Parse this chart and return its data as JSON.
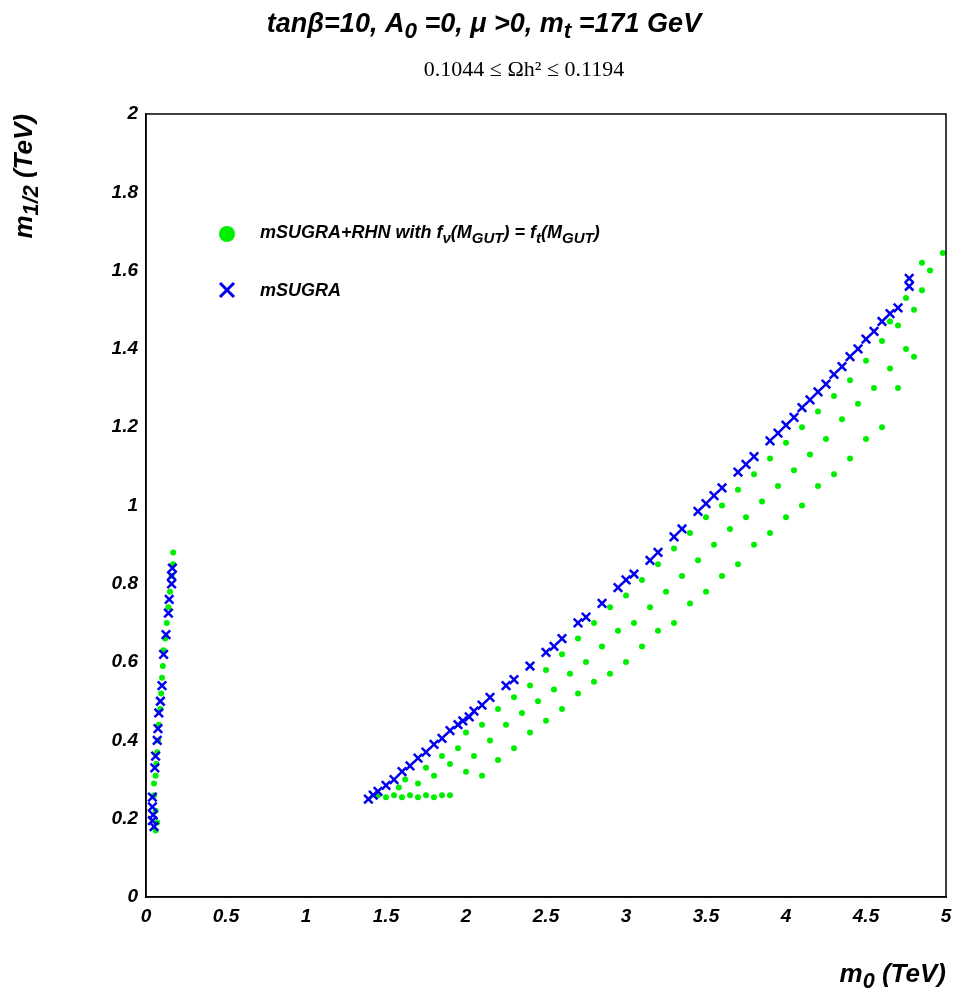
{
  "chart_data": {
    "type": "scatter",
    "title": "tanβ=10, A$_{0}$ =0, μ >0, m$_{t}$ =171 GeV",
    "subtitle": "0.1044 ≤ Ωh² ≤ 0.1194",
    "xlabel": "m$_{0}$ (TeV)",
    "ylabel": "m$_{1/2}$ (TeV)",
    "xlim": [
      0,
      5
    ],
    "xticks": [
      0,
      0.5,
      1,
      1.5,
      2,
      2.5,
      3,
      3.5,
      4,
      4.5,
      5
    ],
    "ylim": [
      0,
      2
    ],
    "yticks": [
      0,
      0.2,
      0.4,
      0.6,
      0.8,
      1,
      1.2,
      1.4,
      1.6,
      1.8,
      2
    ],
    "legend": "top left",
    "series": [
      {
        "name": "mSUGRA+RHN  with  f$_{ν}$(M$_{GUT}$) = f$_{t}$(M$_{GUT}$)",
        "color": "#00ee00",
        "marker": "circle",
        "x": [
          0.06,
          0.07,
          0.06,
          0.05,
          0.05,
          0.06,
          0.065,
          0.07,
          0.075,
          0.08,
          0.09,
          0.095,
          0.1,
          0.105,
          0.11,
          0.12,
          0.13,
          0.14,
          0.15,
          0.16,
          0.17,
          0.17,
          1.45,
          1.5,
          1.55,
          1.6,
          1.65,
          1.7,
          1.75,
          1.8,
          1.85,
          1.9,
          1.58,
          1.62,
          1.7,
          1.75,
          1.8,
          1.85,
          1.9,
          1.95,
          2.0,
          2.0,
          2.05,
          2.1,
          2.1,
          2.15,
          2.2,
          2.2,
          2.25,
          2.3,
          2.3,
          2.35,
          2.4,
          2.4,
          2.45,
          2.5,
          2.5,
          2.55,
          2.6,
          2.6,
          2.65,
          2.7,
          2.7,
          2.75,
          2.8,
          2.8,
          2.85,
          2.9,
          2.9,
          2.95,
          3.0,
          3.0,
          3.05,
          3.1,
          3.1,
          3.15,
          3.2,
          3.2,
          3.25,
          3.3,
          3.3,
          3.35,
          3.4,
          3.4,
          3.45,
          3.5,
          3.5,
          3.55,
          3.6,
          3.6,
          3.65,
          3.7,
          3.7,
          3.75,
          3.8,
          3.8,
          3.85,
          3.9,
          3.9,
          3.95,
          4.0,
          4.0,
          4.05,
          4.1,
          4.1,
          4.15,
          4.2,
          4.2,
          4.25,
          4.3,
          4.3,
          4.35,
          4.4,
          4.4,
          4.45,
          4.5,
          4.5,
          4.55,
          4.6,
          4.6,
          4.65,
          4.7,
          4.7,
          4.75,
          4.8,
          4.8,
          4.85,
          4.9,
          4.98,
          4.75,
          4.65,
          4.85
        ],
        "values": [
          0.17,
          0.19,
          0.22,
          0.26,
          0.29,
          0.31,
          0.34,
          0.37,
          0.4,
          0.44,
          0.48,
          0.52,
          0.56,
          0.59,
          0.63,
          0.66,
          0.7,
          0.74,
          0.78,
          0.82,
          0.85,
          0.88,
          0.26,
          0.255,
          0.26,
          0.255,
          0.26,
          0.255,
          0.26,
          0.255,
          0.26,
          0.26,
          0.28,
          0.3,
          0.29,
          0.33,
          0.31,
          0.36,
          0.34,
          0.38,
          0.32,
          0.42,
          0.36,
          0.44,
          0.31,
          0.4,
          0.48,
          0.35,
          0.44,
          0.51,
          0.38,
          0.47,
          0.54,
          0.42,
          0.5,
          0.58,
          0.45,
          0.53,
          0.62,
          0.48,
          0.57,
          0.66,
          0.52,
          0.6,
          0.7,
          0.55,
          0.64,
          0.74,
          0.57,
          0.68,
          0.77,
          0.6,
          0.7,
          0.81,
          0.64,
          0.74,
          0.85,
          0.68,
          0.78,
          0.89,
          0.7,
          0.82,
          0.93,
          0.75,
          0.86,
          0.97,
          0.78,
          0.9,
          1.0,
          0.82,
          0.94,
          1.04,
          0.85,
          0.97,
          1.08,
          0.9,
          1.01,
          1.12,
          0.93,
          1.05,
          1.16,
          0.97,
          1.09,
          1.2,
          1.0,
          1.13,
          1.24,
          1.05,
          1.17,
          1.28,
          1.08,
          1.22,
          1.32,
          1.12,
          1.26,
          1.37,
          1.17,
          1.3,
          1.42,
          1.2,
          1.35,
          1.46,
          1.3,
          1.4,
          1.5,
          1.38,
          1.55,
          1.6,
          1.645,
          1.53,
          1.47,
          1.62
        ]
      },
      {
        "name": "mSUGRA",
        "color": "#0000ee",
        "marker": "cross",
        "x": [
          0.05,
          0.04,
          0.045,
          0.04,
          0.04,
          0.055,
          0.06,
          0.07,
          0.075,
          0.08,
          0.09,
          0.1,
          0.11,
          0.125,
          0.14,
          0.145,
          0.16,
          0.16,
          0.165,
          1.39,
          1.42,
          1.45,
          1.5,
          1.55,
          1.6,
          1.65,
          1.7,
          1.75,
          1.8,
          1.85,
          1.9,
          1.95,
          1.98,
          2.02,
          2.05,
          2.1,
          2.15,
          2.25,
          2.3,
          2.4,
          2.5,
          2.55,
          2.6,
          2.7,
          2.75,
          2.85,
          2.95,
          3.0,
          3.05,
          3.15,
          3.2,
          3.3,
          3.35,
          3.45,
          3.5,
          3.55,
          3.6,
          3.7,
          3.75,
          3.8,
          3.9,
          3.95,
          4.0,
          4.05,
          4.1,
          4.15,
          4.2,
          4.25,
          4.3,
          4.35,
          4.4,
          4.45,
          4.5,
          4.55,
          4.6,
          4.65,
          4.7,
          4.77,
          4.77
        ],
        "values": [
          0.18,
          0.195,
          0.21,
          0.23,
          0.255,
          0.33,
          0.36,
          0.4,
          0.43,
          0.47,
          0.5,
          0.54,
          0.62,
          0.67,
          0.725,
          0.76,
          0.8,
          0.82,
          0.84,
          0.25,
          0.26,
          0.27,
          0.285,
          0.3,
          0.32,
          0.335,
          0.355,
          0.37,
          0.39,
          0.405,
          0.425,
          0.44,
          0.45,
          0.46,
          0.475,
          0.49,
          0.51,
          0.54,
          0.555,
          0.59,
          0.625,
          0.64,
          0.66,
          0.7,
          0.715,
          0.75,
          0.79,
          0.81,
          0.825,
          0.86,
          0.88,
          0.92,
          0.94,
          0.985,
          1.005,
          1.025,
          1.045,
          1.085,
          1.105,
          1.125,
          1.165,
          1.185,
          1.205,
          1.225,
          1.25,
          1.27,
          1.29,
          1.31,
          1.335,
          1.355,
          1.38,
          1.4,
          1.425,
          1.445,
          1.47,
          1.49,
          1.505,
          1.58,
          1.56
        ]
      }
    ]
  }
}
